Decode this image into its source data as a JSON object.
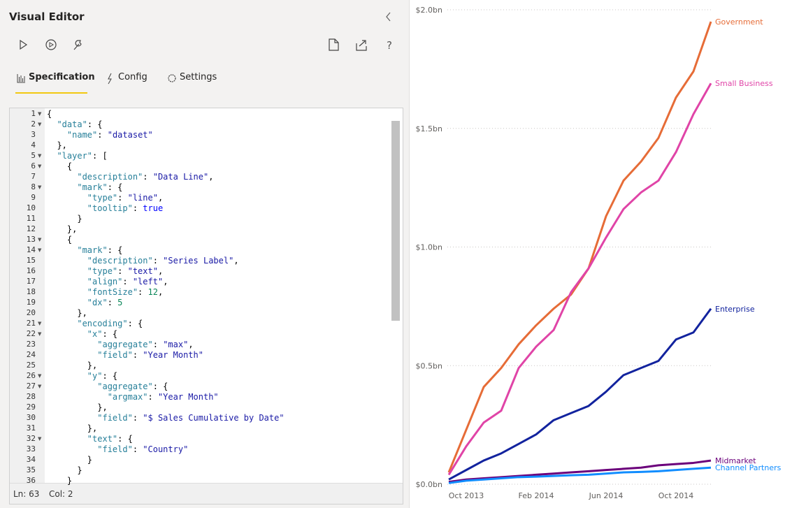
{
  "editor": {
    "title": "Visual Editor",
    "tabs": [
      "Specification",
      "Config",
      "Settings"
    ],
    "line_numbers": [
      1,
      2,
      3,
      4,
      5,
      6,
      7,
      8,
      9,
      10,
      11,
      12,
      13,
      14,
      15,
      16,
      17,
      18,
      19,
      20,
      21,
      22,
      23,
      24,
      25,
      26,
      27,
      28,
      29,
      30,
      31,
      32,
      33,
      34,
      35,
      36
    ],
    "lines": [
      "{",
      "  \"data\": {",
      "    \"name\": \"dataset\"",
      "  },",
      "  \"layer\": [",
      "    {",
      "      \"description\": \"Data Line\",",
      "      \"mark\": {",
      "        \"type\": \"line\",",
      "        \"tooltip\": true",
      "      }",
      "    },",
      "    {",
      "      \"mark\": {",
      "        \"description\": \"Series Label\",",
      "        \"type\": \"text\",",
      "        \"align\": \"left\",",
      "        \"fontSize\": 12,",
      "        \"dx\": 5",
      "      },",
      "      \"encoding\": {",
      "        \"x\": {",
      "          \"aggregate\": \"max\",",
      "          \"field\": \"Year Month\"",
      "        },",
      "        \"y\": {",
      "          \"aggregate\": {",
      "            \"argmax\": \"Year Month\"",
      "          },",
      "          \"field\": \"$ Sales Cumulative by Date\"",
      "        },",
      "        \"text\": {",
      "          \"field\": \"Country\"",
      "        }",
      "      }",
      "    }"
    ],
    "status": {
      "line": "Ln: 63",
      "col": "Col: 2"
    }
  },
  "chart_data": {
    "type": "line",
    "categories": [
      null,
      "Oct 2013",
      null,
      null,
      null,
      "Feb 2014",
      null,
      null,
      null,
      "Jun 2014",
      null,
      null,
      null,
      "Oct 2014",
      null,
      null
    ],
    "ylim": [
      0,
      2.0
    ],
    "yticks": [
      {
        "value": 0,
        "label": "$0.0bn"
      },
      {
        "value": 0.5,
        "label": "$0.5bn"
      },
      {
        "value": 1.0,
        "label": "$1.0bn"
      },
      {
        "value": 1.5,
        "label": "$1.5bn"
      },
      {
        "value": 2.0,
        "label": "$2.0bn"
      }
    ],
    "grid": true,
    "series": [
      {
        "name": "Government",
        "color": "#e66c37",
        "values": [
          0.05,
          0.23,
          0.41,
          0.49,
          0.59,
          0.67,
          0.74,
          0.8,
          0.91,
          1.13,
          1.28,
          1.36,
          1.46,
          1.63,
          1.74,
          1.95
        ]
      },
      {
        "name": "Small Business",
        "color": "#e044a7",
        "values": [
          0.04,
          0.16,
          0.26,
          0.31,
          0.49,
          0.58,
          0.65,
          0.81,
          0.91,
          1.04,
          1.16,
          1.23,
          1.28,
          1.4,
          1.56,
          1.69
        ]
      },
      {
        "name": "Enterprise",
        "color": "#12239e",
        "values": [
          0.02,
          0.06,
          0.1,
          0.13,
          0.17,
          0.21,
          0.27,
          0.3,
          0.33,
          0.39,
          0.46,
          0.49,
          0.52,
          0.61,
          0.64,
          0.74
        ]
      },
      {
        "name": "Midmarket",
        "color": "#6b007b",
        "values": [
          0.01,
          0.02,
          0.025,
          0.03,
          0.035,
          0.04,
          0.045,
          0.05,
          0.055,
          0.06,
          0.065,
          0.07,
          0.08,
          0.085,
          0.09,
          0.1
        ]
      },
      {
        "name": "Channel Partners",
        "color": "#118dff",
        "values": [
          0.005,
          0.015,
          0.02,
          0.025,
          0.03,
          0.032,
          0.035,
          0.038,
          0.04,
          0.045,
          0.05,
          0.052,
          0.055,
          0.06,
          0.065,
          0.07
        ]
      }
    ]
  }
}
